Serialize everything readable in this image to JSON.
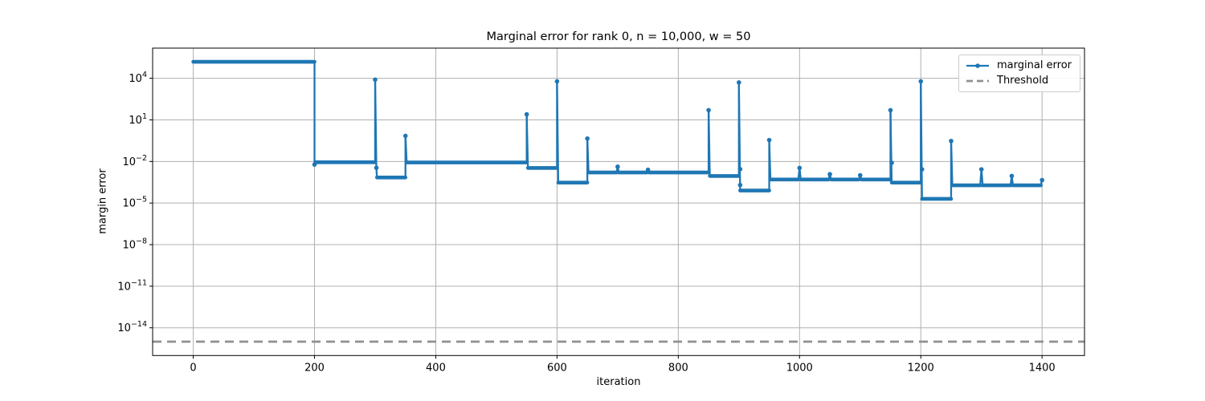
{
  "chart_data": {
    "type": "line",
    "title": "Marginal error for rank 0, n = 10,000, w = 50",
    "xlabel": "iteration",
    "ylabel": "margin error",
    "x_ticks": [
      0,
      200,
      400,
      600,
      800,
      1000,
      1200,
      1400
    ],
    "y_tick_exponents": [
      4,
      1,
      -2,
      -5,
      -8,
      -11,
      -14
    ],
    "xlim": [
      -67,
      1470
    ],
    "ylim": [
      1e-16,
      1500000.0
    ],
    "grid": true,
    "legend": {
      "position": "upper right",
      "entries": [
        {
          "label": "marginal error",
          "color": "#1f77b4",
          "style": "solid-with-marker"
        },
        {
          "label": "Threshold",
          "color": "#909090",
          "style": "dashed"
        }
      ]
    },
    "series": [
      {
        "name": "marginal error",
        "color": "#1f77b4",
        "points": [
          [
            0,
            155000
          ],
          [
            200,
            155000
          ],
          [
            200,
            0.006
          ],
          [
            202,
            0.0088
          ],
          [
            300,
            0.0088
          ],
          [
            300,
            8000
          ],
          [
            302,
            0.0035
          ],
          [
            303,
            0.0007
          ],
          [
            350,
            0.0007
          ],
          [
            350,
            0.7
          ],
          [
            352,
            0.0085
          ],
          [
            550,
            0.0085
          ],
          [
            550,
            25
          ],
          [
            552,
            0.0034
          ],
          [
            600,
            0.0034
          ],
          [
            600,
            6000
          ],
          [
            602,
            0.0003
          ],
          [
            650,
            0.0003
          ],
          [
            650,
            0.45
          ],
          [
            652,
            0.0016
          ],
          [
            698,
            0.0016
          ],
          [
            700,
            0.0042
          ],
          [
            702,
            0.0016
          ],
          [
            748,
            0.0016
          ],
          [
            750,
            0.0025
          ],
          [
            752,
            0.0016
          ],
          [
            850,
            0.0016
          ],
          [
            850,
            50
          ],
          [
            852,
            0.0009
          ],
          [
            900,
            0.0009
          ],
          [
            900,
            5000
          ],
          [
            902,
            8e-05
          ],
          [
            950,
            8e-05
          ],
          [
            950,
            0.35
          ],
          [
            952,
            0.0005
          ],
          [
            998,
            0.0005
          ],
          [
            1000,
            0.0034
          ],
          [
            1002,
            0.0005
          ],
          [
            1048,
            0.0005
          ],
          [
            1050,
            0.0012
          ],
          [
            1052,
            0.0005
          ],
          [
            1098,
            0.0005
          ],
          [
            1100,
            0.001
          ],
          [
            1102,
            0.0005
          ],
          [
            1150,
            0.0005
          ],
          [
            1150,
            50
          ],
          [
            1152,
            0.0003
          ],
          [
            1200,
            0.0003
          ],
          [
            1200,
            6000
          ],
          [
            1202,
            2e-05
          ],
          [
            1250,
            2e-05
          ],
          [
            1250,
            0.3
          ],
          [
            1252,
            0.00019
          ],
          [
            1298,
            0.00019
          ],
          [
            1300,
            0.0027
          ],
          [
            1302,
            0.00019
          ],
          [
            1348,
            0.00019
          ],
          [
            1350,
            0.0009
          ],
          [
            1352,
            0.00019
          ],
          [
            1398,
            0.00019
          ],
          [
            1400,
            0.00045
          ]
        ],
        "marker_points": [
          [
            300,
            8000
          ],
          [
            350,
            0.7
          ],
          [
            550,
            25
          ],
          [
            600,
            6000
          ],
          [
            650,
            0.45
          ],
          [
            700,
            0.0042
          ],
          [
            750,
            0.0025
          ],
          [
            850,
            50
          ],
          [
            900,
            5000
          ],
          [
            950,
            0.35
          ],
          [
            1000,
            0.0034
          ],
          [
            1050,
            0.0012
          ],
          [
            1100,
            0.001
          ],
          [
            1150,
            50
          ],
          [
            1200,
            6000
          ],
          [
            1250,
            0.3
          ],
          [
            1300,
            0.0027
          ],
          [
            1350,
            0.0009
          ],
          [
            1400,
            0.00045
          ],
          [
            200,
            0.006
          ],
          [
            302,
            0.0035
          ],
          [
            902,
            0.0028
          ],
          [
            902,
            0.0002
          ],
          [
            1152,
            0.008
          ],
          [
            1202,
            0.0027
          ]
        ]
      },
      {
        "name": "Threshold",
        "color": "#909090",
        "style": "dashed",
        "value": 1e-15
      }
    ],
    "colors": {
      "grid": "#b0b0b0",
      "spine": "#000000",
      "background": "#ffffff",
      "series_blue": "#1f77b4",
      "threshold_gray": "#909090"
    }
  }
}
